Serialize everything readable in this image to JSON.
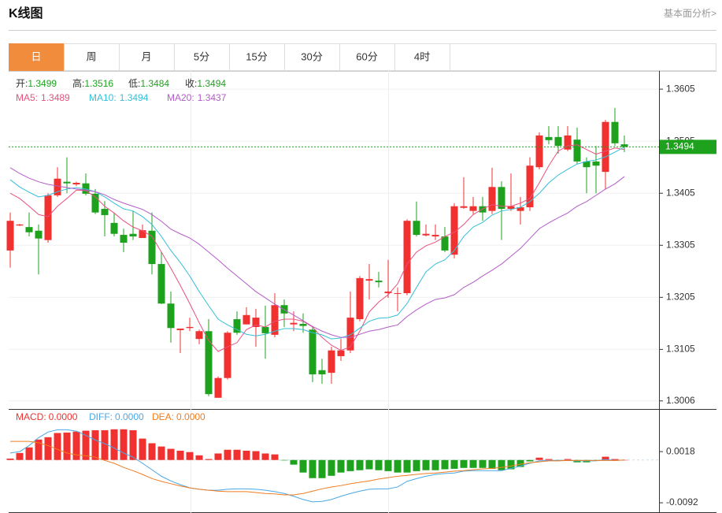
{
  "header": {
    "title": "K线图",
    "link": "基本面分析>"
  },
  "tabs": {
    "items": [
      "日",
      "周",
      "月",
      "5分",
      "15分",
      "30分",
      "60分",
      "4时"
    ],
    "active": 0,
    "active_color": "#f08c3c"
  },
  "chart_data": [
    {
      "type": "candlestick",
      "up_color": "#f0312f",
      "down_color": "#1ea21e",
      "last_price_color": "#1ea21e",
      "grid": true,
      "ohlc_labels": [
        "开:",
        "高:",
        "低:",
        "收:"
      ],
      "open": [
        1.3295,
        1.3343,
        1.334,
        1.3333,
        1.3315,
        1.3401,
        1.3427,
        1.3422,
        1.3424,
        1.3404,
        1.3375,
        1.3348,
        1.3325,
        1.3327,
        1.3319,
        1.3333,
        1.3269,
        1.3193,
        1.3142,
        1.3146,
        1.3125,
        1.314,
        1.3012,
        1.305,
        1.3163,
        1.3153,
        1.3148,
        1.3148,
        1.3133,
        1.319,
        1.3153,
        1.3154,
        1.3143,
        1.3065,
        1.306,
        1.3092,
        1.3103,
        1.3163,
        1.3237,
        1.3237,
        1.3213,
        1.3212,
        1.3213,
        1.3352,
        1.3324,
        1.3322,
        1.3322,
        1.3287,
        1.3377,
        1.3371,
        1.338,
        1.3371,
        1.3417,
        1.3375,
        1.3371,
        1.3378,
        1.3455,
        1.3513,
        1.3513,
        1.3489,
        1.3508,
        1.3466,
        1.3466,
        1.3446,
        1.3542,
        1.3499
      ],
      "high": [
        1.3368,
        1.3346,
        1.3368,
        1.3345,
        1.3405,
        1.3455,
        1.3474,
        1.3427,
        1.3443,
        1.3413,
        1.339,
        1.3368,
        1.3337,
        1.3371,
        1.3345,
        1.3368,
        1.3292,
        1.3216,
        1.3145,
        1.3166,
        1.3143,
        1.3163,
        1.3053,
        1.314,
        1.3178,
        1.3186,
        1.3183,
        1.3189,
        1.3213,
        1.3201,
        1.3178,
        1.3174,
        1.3148,
        1.3087,
        1.311,
        1.3125,
        1.3216,
        1.3246,
        1.3269,
        1.3254,
        1.3277,
        1.3224,
        1.3355,
        1.3389,
        1.3345,
        1.3345,
        1.334,
        1.3386,
        1.3436,
        1.3398,
        1.3398,
        1.3454,
        1.3428,
        1.3443,
        1.3398,
        1.3474,
        1.3522,
        1.3534,
        1.3534,
        1.3534,
        1.3531,
        1.3474,
        1.3496,
        1.3546,
        1.3569,
        1.3516
      ],
      "low": [
        1.3262,
        1.3342,
        1.3322,
        1.3249,
        1.331,
        1.3398,
        1.3405,
        1.3419,
        1.3401,
        1.3365,
        1.3322,
        1.3322,
        1.3292,
        1.3315,
        1.3319,
        1.3249,
        1.3192,
        1.3118,
        1.3098,
        1.314,
        1.3115,
        1.3015,
        1.3012,
        1.3047,
        1.3133,
        1.3153,
        1.311,
        1.3087,
        1.3128,
        1.3148,
        1.314,
        1.3137,
        1.3042,
        1.3039,
        1.3039,
        1.3083,
        1.3098,
        1.3159,
        1.3201,
        1.3224,
        1.3204,
        1.3178,
        1.3209,
        1.3322,
        1.3322,
        1.3315,
        1.3292,
        1.328,
        1.3375,
        1.3365,
        1.3352,
        1.3365,
        1.3315,
        1.3371,
        1.3345,
        1.3371,
        1.3451,
        1.3499,
        1.3481,
        1.3486,
        1.3461,
        1.3405,
        1.3405,
        1.3413,
        1.3496,
        1.3484
      ],
      "close": [
        1.3352,
        1.3345,
        1.333,
        1.3318,
        1.3401,
        1.3433,
        1.3424,
        1.3425,
        1.3404,
        1.3368,
        1.3363,
        1.3327,
        1.331,
        1.3322,
        1.3334,
        1.3269,
        1.3193,
        1.3146,
        1.3145,
        1.3148,
        1.314,
        1.3019,
        1.305,
        1.3137,
        1.3137,
        1.3171,
        1.3166,
        1.3136,
        1.319,
        1.3174,
        1.3156,
        1.315,
        1.3057,
        1.3057,
        1.3103,
        1.3103,
        1.3166,
        1.3242,
        1.324,
        1.3234,
        1.3216,
        1.3213,
        1.3352,
        1.3325,
        1.3327,
        1.3325,
        1.3295,
        1.338,
        1.338,
        1.338,
        1.3368,
        1.3417,
        1.3375,
        1.338,
        1.3378,
        1.3458,
        1.3516,
        1.3507,
        1.3496,
        1.3516,
        1.3466,
        1.3455,
        1.3458,
        1.3542,
        1.3501,
        1.3494
      ],
      "series": [
        {
          "name": "MA5:",
          "color": "#e8507e",
          "values": [
            1.3405,
            1.3395,
            1.338,
            1.3364,
            1.336,
            1.338,
            1.3395,
            1.3411,
            1.341,
            1.3398,
            1.338,
            1.3367,
            1.3352,
            1.334,
            1.3333,
            1.3322,
            1.3292,
            1.3261,
            1.3228,
            1.3193,
            1.3156,
            1.3122,
            1.3101,
            1.311,
            1.3118,
            1.3143,
            1.3152,
            1.3148,
            1.3159,
            1.3163,
            1.3163,
            1.3159,
            1.3148,
            1.3128,
            1.3113,
            1.3103,
            1.311,
            1.314,
            1.3177,
            1.3196,
            1.321,
            1.3231,
            1.3269,
            1.3292,
            1.3304,
            1.3311,
            1.3322,
            1.333,
            1.3345,
            1.3364,
            1.3375,
            1.3383,
            1.338,
            1.338,
            1.3386,
            1.3395,
            1.3425,
            1.3458,
            1.3486,
            1.3496,
            1.3498,
            1.3489,
            1.348,
            1.3486,
            1.3492,
            1.3489
          ]
        },
        {
          "name": "MA10:",
          "color": "#35bfd8",
          "values": [
            1.3431,
            1.3417,
            1.3407,
            1.3398,
            1.3401,
            1.3408,
            1.3413,
            1.3416,
            1.3413,
            1.3408,
            1.3398,
            1.3386,
            1.3375,
            1.3371,
            1.336,
            1.3345,
            1.3322,
            1.3295,
            1.3272,
            1.3246,
            1.3216,
            1.3189,
            1.3163,
            1.3152,
            1.3143,
            1.3134,
            1.3131,
            1.3134,
            1.314,
            1.3145,
            1.3145,
            1.3143,
            1.3137,
            1.3133,
            1.3125,
            1.3127,
            1.3133,
            1.3146,
            1.3159,
            1.3165,
            1.3166,
            1.3171,
            1.3193,
            1.3224,
            1.3254,
            1.3269,
            1.3277,
            1.3295,
            1.3322,
            1.334,
            1.3349,
            1.3363,
            1.3371,
            1.3374,
            1.3378,
            1.3389,
            1.3405,
            1.3425,
            1.344,
            1.3451,
            1.3461,
            1.3466,
            1.3469,
            1.3475,
            1.3484,
            1.3494
          ]
        },
        {
          "name": "MA20:",
          "color": "#b45cc8",
          "values": [
            1.3454,
            1.3443,
            1.3434,
            1.3427,
            1.3422,
            1.3419,
            1.3416,
            1.3413,
            1.3411,
            1.3408,
            1.3402,
            1.3393,
            1.3386,
            1.338,
            1.3374,
            1.3364,
            1.3351,
            1.3336,
            1.3327,
            1.3319,
            1.3307,
            1.3292,
            1.3277,
            1.3261,
            1.3246,
            1.3231,
            1.3216,
            1.3204,
            1.3192,
            1.3181,
            1.3171,
            1.316,
            1.3149,
            1.314,
            1.3133,
            1.3128,
            1.3128,
            1.3134,
            1.314,
            1.3143,
            1.3148,
            1.3152,
            1.3168,
            1.3181,
            1.3192,
            1.3201,
            1.3204,
            1.321,
            1.3224,
            1.3234,
            1.3246,
            1.3257,
            1.3269,
            1.3284,
            1.3299,
            1.3318,
            1.3337,
            1.3348,
            1.3358,
            1.3367,
            1.338,
            1.3389,
            1.3401,
            1.3413,
            1.3423,
            1.3437
          ]
        }
      ],
      "ylim": [
        1.2992,
        1.364
      ],
      "yticks": [
        1.3605,
        1.3505,
        1.3405,
        1.3305,
        1.3205,
        1.3105,
        1.3006
      ]
    },
    {
      "type": "macd",
      "grid": false,
      "series": [
        {
          "name": "MACD:",
          "type": "bar",
          "color": "#f0312f",
          "up_color": "#f0312f",
          "down_color": "#1ea21e",
          "readout": "0.0000",
          "values": [
            0.0003,
            0.0015,
            0.0027,
            0.0044,
            0.0049,
            0.0058,
            0.0059,
            0.0061,
            0.0063,
            0.0064,
            0.0064,
            0.0066,
            0.0066,
            0.0064,
            0.0046,
            0.0036,
            0.0029,
            0.0024,
            0.002,
            0.0017,
            0.001,
            0.0002,
            0.0014,
            0.0022,
            0.0022,
            0.002,
            0.0019,
            0.0014,
            0.0012,
            -0.0001,
            -0.001,
            -0.0027,
            -0.0039,
            -0.0039,
            -0.0034,
            -0.0027,
            -0.0024,
            -0.0022,
            -0.002,
            -0.0022,
            -0.0024,
            -0.0027,
            -0.0027,
            -0.0024,
            -0.0022,
            -0.0022,
            -0.002,
            -0.0019,
            -0.0017,
            -0.0017,
            -0.0017,
            -0.0019,
            -0.0022,
            -0.002,
            -0.0015,
            -0.0003,
            0.0005,
            0.0002,
            -0.0002,
            0.0002,
            -0.0005,
            -0.0005,
            -0.0002,
            0.0007,
            0.0002,
            0
          ]
        },
        {
          "name": "DIFF:",
          "type": "line",
          "color": "#4aa8e8",
          "readout": "0.0000",
          "values": [
            0.0015,
            0.0018,
            0.0031,
            0.0048,
            0.006,
            0.0065,
            0.0065,
            0.0062,
            0.0053,
            0.0043,
            0.0035,
            0.0026,
            0.0015,
            0.0006,
            -0.0007,
            -0.0021,
            -0.0035,
            -0.0045,
            -0.0053,
            -0.006,
            -0.0063,
            -0.0065,
            -0.0065,
            -0.0063,
            -0.0062,
            -0.0062,
            -0.0063,
            -0.0065,
            -0.0068,
            -0.0072,
            -0.0078,
            -0.0085,
            -0.009,
            -0.0089,
            -0.0085,
            -0.0078,
            -0.0072,
            -0.0067,
            -0.0063,
            -0.0062,
            -0.0062,
            -0.0058,
            -0.0046,
            -0.004,
            -0.0035,
            -0.0031,
            -0.0029,
            -0.0028,
            -0.0024,
            -0.0023,
            -0.0023,
            -0.0023,
            -0.0023,
            -0.0018,
            -0.0013,
            -0.0007,
            -0.0002,
            -0.0001,
            -0.0001,
            -0.0001,
            -0.0002,
            -0.0002,
            -0.0002,
            0.0001,
            -0.0001,
            0
          ]
        },
        {
          "name": "DEA:",
          "type": "line",
          "color": "#f07d22",
          "readout": "0.0000",
          "values": [
            0.004,
            0.004,
            0.004,
            0.0037,
            0.0031,
            0.0023,
            0.0015,
            0.0011,
            0.0009,
            0.0006,
            -0.0001,
            -0.0007,
            -0.0016,
            -0.0023,
            -0.0031,
            -0.004,
            -0.0046,
            -0.0051,
            -0.0056,
            -0.006,
            -0.0063,
            -0.0065,
            -0.0067,
            -0.0068,
            -0.0068,
            -0.0068,
            -0.007,
            -0.0072,
            -0.0073,
            -0.0075,
            -0.0075,
            -0.0072,
            -0.0067,
            -0.0062,
            -0.0058,
            -0.0055,
            -0.0051,
            -0.0048,
            -0.0045,
            -0.0041,
            -0.0038,
            -0.0035,
            -0.0033,
            -0.0031,
            -0.0029,
            -0.0028,
            -0.0026,
            -0.0024,
            -0.0023,
            -0.0021,
            -0.0019,
            -0.0018,
            -0.0016,
            -0.0013,
            -0.0009,
            -0.0006,
            -0.0004,
            -0.0002,
            -0.0002,
            -0.0001,
            -0.0001,
            -0.0001,
            -0.0001,
            -0.0001,
            -0.0001,
            0
          ]
        }
      ],
      "ylim": [
        -0.0114,
        0.0108
      ],
      "yticks": [
        0.0018,
        -0.0092
      ]
    }
  ]
}
